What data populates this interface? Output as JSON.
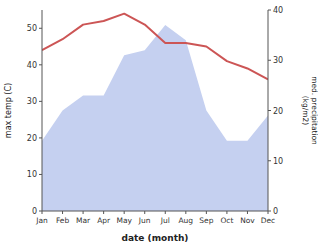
{
  "chart_data": {
    "type": "line",
    "categories": [
      "Jan",
      "Feb",
      "Mar",
      "Apr",
      "May",
      "Jun",
      "Jul",
      "Aug",
      "Sep",
      "Oct",
      "Nov",
      "Dec"
    ],
    "series": [
      {
        "type": "area",
        "axis": "y2",
        "color": "#c5d0f0",
        "values": [
          14,
          20,
          23,
          23,
          31,
          32,
          37,
          34,
          20,
          14,
          14,
          19
        ]
      },
      {
        "type": "line",
        "color": "#cc5555",
        "values": [
          44,
          47,
          51,
          52,
          54,
          51,
          46,
          46,
          45,
          41,
          39,
          36
        ]
      }
    ],
    "xlabel": "date (month)",
    "ylabel": "max temp (C)",
    "y2label": "med. precipitation\n(kg/m2)",
    "ylim": [
      0,
      55
    ],
    "yticks": [
      0,
      10,
      20,
      30,
      40,
      50
    ],
    "y2lim": [
      0,
      40
    ],
    "y2ticks": [
      0,
      10,
      20,
      30,
      40
    ],
    "grid": false
  }
}
